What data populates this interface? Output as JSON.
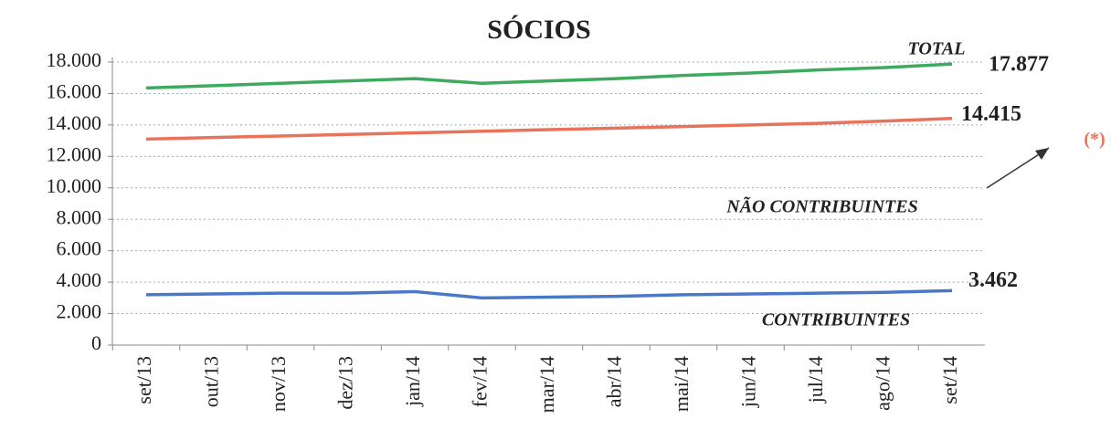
{
  "chart_data": {
    "type": "line",
    "title": "SÓCIOS",
    "categories": [
      "set/13",
      "out/13",
      "nov/13",
      "dez/13",
      "jan/14",
      "fev/14",
      "mar/14",
      "abr/14",
      "mai/14",
      "jun/14",
      "jul/14",
      "ago/14",
      "set/14"
    ],
    "series": [
      {
        "name": "TOTAL",
        "color": "#3daa5e",
        "values": [
          16350,
          16500,
          16650,
          16800,
          16950,
          16650,
          16800,
          16950,
          17150,
          17300,
          17500,
          17650,
          17877
        ],
        "value_labels": [
          null,
          null,
          null,
          null,
          null,
          null,
          null,
          null,
          null,
          null,
          null,
          null,
          "17.877"
        ]
      },
      {
        "name": "NÃO  CONTRIBUINTES",
        "color": "#e8735a",
        "values": [
          13100,
          13200,
          13300,
          13400,
          13500,
          13600,
          13700,
          13800,
          13900,
          14000,
          14100,
          14250,
          14415
        ],
        "value_labels": [
          null,
          null,
          null,
          null,
          null,
          null,
          null,
          null,
          null,
          null,
          null,
          null,
          "14.415"
        ]
      },
      {
        "name": "CONTRIBUINTES",
        "color": "#4a78c8",
        "values": [
          3200,
          3250,
          3300,
          3300,
          3400,
          3000,
          3050,
          3100,
          3200,
          3250,
          3300,
          3350,
          3462
        ],
        "value_labels": [
          null,
          null,
          null,
          null,
          null,
          null,
          null,
          null,
          null,
          null,
          null,
          null,
          "3.462"
        ]
      }
    ],
    "annotations": [
      "(*)"
    ],
    "ylim": [
      0,
      18000
    ],
    "yticks": [
      0,
      {
        "value": 2000,
        "label": "2.000"
      },
      {
        "value": 4000,
        "label": "4.000"
      },
      {
        "value": 6000,
        "label": "6.000"
      },
      {
        "value": 8000,
        "label": "8.000"
      },
      {
        "value": 10000,
        "label": "10.000"
      },
      {
        "value": 12000,
        "label": "12.000"
      },
      {
        "value": 14000,
        "label": "14.000"
      },
      {
        "value": 16000,
        "label": "16.000"
      },
      {
        "value": 18000,
        "label": "18.000"
      }
    ],
    "grid": true
  }
}
